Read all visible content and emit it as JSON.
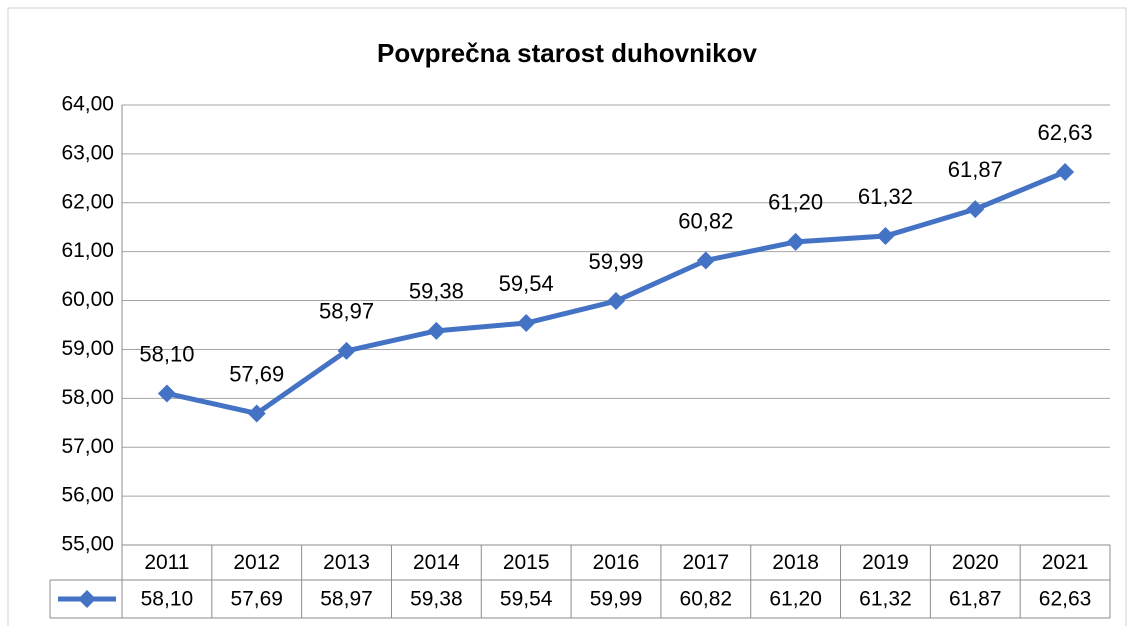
{
  "chart_data": {
    "type": "line",
    "title": "Povprečna starost duhovnikov",
    "categories": [
      "2011",
      "2012",
      "2013",
      "2014",
      "2015",
      "2016",
      "2017",
      "2018",
      "2019",
      "2020",
      "2021"
    ],
    "series": [
      {
        "color": "#4472c4",
        "values": [
          58.1,
          57.69,
          58.97,
          59.38,
          59.54,
          59.99,
          60.82,
          61.2,
          61.32,
          61.87,
          62.63
        ],
        "value_labels": [
          "58,10",
          "57,69",
          "58,97",
          "59,38",
          "59,54",
          "59,99",
          "60,82",
          "61,20",
          "61,32",
          "61,87",
          "62,63"
        ]
      }
    ],
    "ylim": [
      55,
      64
    ],
    "yticks": [
      {
        "value": 55,
        "label": "55,00"
      },
      {
        "value": 56,
        "label": "56,00"
      },
      {
        "value": 57,
        "label": "57,00"
      },
      {
        "value": 58,
        "label": "58,00"
      },
      {
        "value": 59,
        "label": "59,00"
      },
      {
        "value": 60,
        "label": "60,00"
      },
      {
        "value": 61,
        "label": "61,00"
      },
      {
        "value": 62,
        "label": "62,00"
      },
      {
        "value": 63,
        "label": "63,00"
      },
      {
        "value": 64,
        "label": "64,00"
      }
    ],
    "grid": true
  }
}
